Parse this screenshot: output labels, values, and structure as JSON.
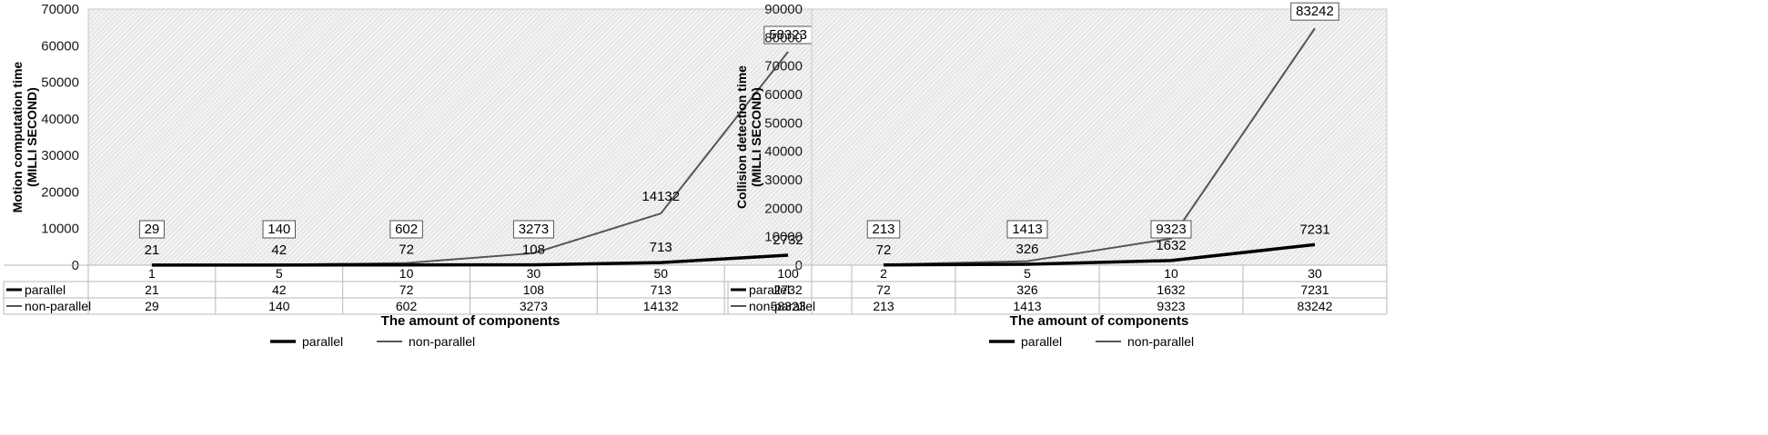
{
  "chart_data": [
    {
      "type": "line",
      "ylabel_line1": "Motion computation time",
      "ylabel_line2": "(MILLI  SECOND)",
      "xlabel": "The amount of components",
      "categories": [
        "1",
        "5",
        "10",
        "30",
        "50",
        "100"
      ],
      "ylim": [
        0,
        70000
      ],
      "yticks": [
        "0",
        "10000",
        "20000",
        "30000",
        "40000",
        "50000",
        "60000",
        "70000"
      ],
      "grid": "hatched plot background",
      "legend_position": "bottom",
      "data_table": true,
      "series": [
        {
          "name": "parallel",
          "values": [
            21,
            42,
            72,
            108,
            713,
            2732
          ],
          "color": "#000000"
        },
        {
          "name": "non-parallel",
          "values": [
            29,
            140,
            602,
            3273,
            14132,
            58323
          ],
          "color": "#555555"
        }
      ]
    },
    {
      "type": "line",
      "ylabel_line1": "Collision detection time",
      "ylabel_line2": "(MILLI  SECOND)",
      "xlabel": "The amount of components",
      "categories": [
        "2",
        "5",
        "10",
        "30"
      ],
      "ylim": [
        0,
        90000
      ],
      "yticks": [
        "0",
        "10000",
        "20000",
        "30000",
        "40000",
        "50000",
        "60000",
        "70000",
        "80000",
        "90000"
      ],
      "grid": "hatched plot background",
      "legend_position": "bottom",
      "data_table": true,
      "series": [
        {
          "name": "parallel",
          "values": [
            72,
            326,
            1632,
            7231
          ],
          "color": "#000000"
        },
        {
          "name": "non-parallel",
          "values": [
            213,
            1413,
            9323,
            83242
          ],
          "color": "#555555"
        }
      ]
    }
  ]
}
